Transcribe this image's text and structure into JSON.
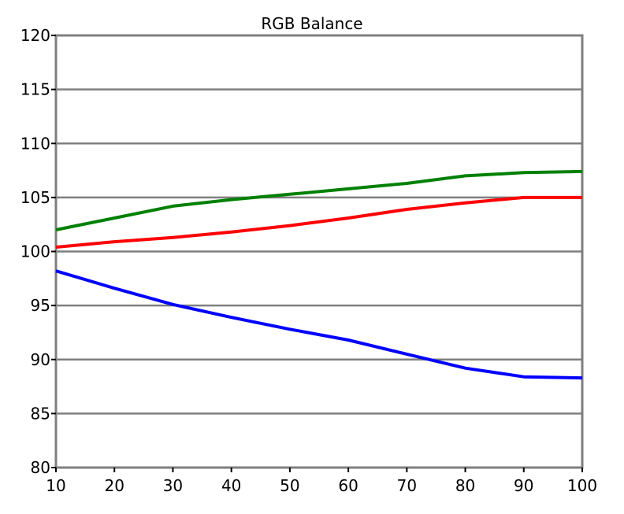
{
  "chart_data": {
    "type": "line",
    "title": "RGB Balance",
    "xlabel": "",
    "ylabel": "",
    "x": [
      10,
      20,
      30,
      40,
      50,
      60,
      70,
      80,
      90,
      100
    ],
    "xlim": [
      10,
      100
    ],
    "ylim": [
      80,
      120
    ],
    "xticks": [
      "10",
      "20",
      "30",
      "40",
      "50",
      "60",
      "70",
      "80",
      "90",
      "100"
    ],
    "yticks": [
      "80",
      "85",
      "90",
      "95",
      "100",
      "105",
      "110",
      "115",
      "120"
    ],
    "grid": "horizontal",
    "series": [
      {
        "color": "#008000",
        "values": [
          102.0,
          103.1,
          104.2,
          104.8,
          105.3,
          105.8,
          106.3,
          107.0,
          107.3,
          107.4
        ]
      },
      {
        "color": "#ff0000",
        "values": [
          100.4,
          100.9,
          101.3,
          101.8,
          102.4,
          103.1,
          103.9,
          104.5,
          105.0,
          105.0
        ]
      },
      {
        "color": "#0000ff",
        "values": [
          98.2,
          96.6,
          95.1,
          93.9,
          92.8,
          91.8,
          90.5,
          89.2,
          88.4,
          88.3
        ]
      }
    ]
  }
}
